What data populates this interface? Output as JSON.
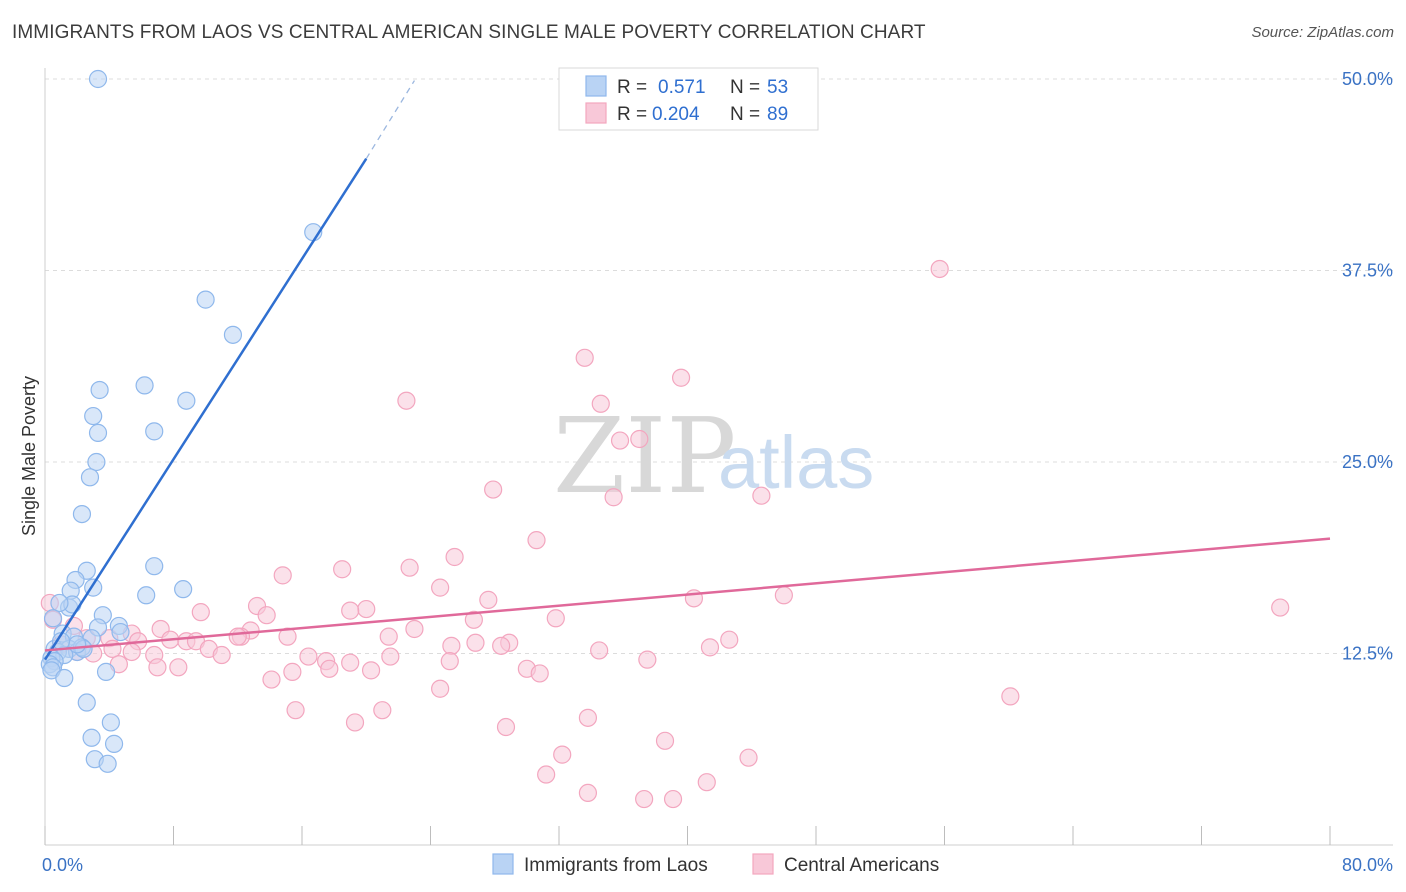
{
  "chart_data": {
    "type": "scatter",
    "title": "IMMIGRANTS FROM LAOS VS CENTRAL AMERICAN SINGLE MALE POVERTY CORRELATION CHART",
    "source": "Source: ZipAtlas.com",
    "ylabel": "Single Male Poverty",
    "xlabel": "",
    "xlim": [
      0,
      80
    ],
    "ylim": [
      0,
      50
    ],
    "x_tick_labels": [
      "0.0%",
      "80.0%"
    ],
    "y_ticks": [
      12.5,
      25.0,
      37.5,
      50.0
    ],
    "y_tick_labels": [
      "12.5%",
      "25.0%",
      "37.5%",
      "50.0%"
    ],
    "watermark": {
      "zip": "ZIP",
      "atlas": "atlas"
    },
    "legend": [
      {
        "r_label": "R =",
        "r_value": "0.571",
        "n_label": "N =",
        "n_value": "53"
      },
      {
        "r_label": "R =",
        "r_value": "0.204",
        "n_label": "N =",
        "n_value": "89"
      }
    ],
    "series": [
      {
        "name": "Immigrants from Laos",
        "color": "#8fb8ec",
        "fill": "#b9d3f4",
        "line_color": "#2f6fd0",
        "trend": {
          "x1": 0.0,
          "y1": 12.1,
          "x2": 20.0,
          "y2": 44.8,
          "dash_x2": 23.0,
          "dash_y2": 49.9
        },
        "points": [
          [
            3.3,
            50.0
          ],
          [
            16.7,
            40.0
          ],
          [
            10.0,
            35.6
          ],
          [
            11.7,
            33.3
          ],
          [
            6.2,
            30.0
          ],
          [
            3.4,
            29.7
          ],
          [
            8.8,
            29.0
          ],
          [
            3.0,
            28.0
          ],
          [
            6.8,
            27.0
          ],
          [
            3.3,
            26.9
          ],
          [
            3.2,
            25.0
          ],
          [
            2.8,
            24.0
          ],
          [
            2.3,
            21.6
          ],
          [
            6.8,
            18.2
          ],
          [
            2.6,
            17.9
          ],
          [
            3.0,
            16.8
          ],
          [
            1.9,
            17.3
          ],
          [
            1.6,
            16.6
          ],
          [
            8.6,
            16.7
          ],
          [
            6.3,
            16.3
          ],
          [
            1.5,
            15.5
          ],
          [
            1.7,
            15.7
          ],
          [
            0.9,
            15.8
          ],
          [
            0.5,
            14.8
          ],
          [
            3.6,
            15.0
          ],
          [
            4.6,
            14.3
          ],
          [
            3.3,
            14.2
          ],
          [
            4.7,
            13.9
          ],
          [
            1.1,
            13.8
          ],
          [
            1.8,
            13.6
          ],
          [
            2.9,
            13.5
          ],
          [
            0.6,
            12.8
          ],
          [
            1.5,
            12.8
          ],
          [
            2.0,
            12.6
          ],
          [
            2.3,
            12.9
          ],
          [
            2.4,
            12.8
          ],
          [
            0.8,
            12.6
          ],
          [
            1.2,
            12.4
          ],
          [
            0.4,
            12.2
          ],
          [
            0.6,
            12.0
          ],
          [
            0.3,
            11.8
          ],
          [
            0.5,
            11.6
          ],
          [
            0.4,
            11.4
          ],
          [
            1.2,
            10.9
          ],
          [
            3.8,
            11.3
          ],
          [
            2.6,
            9.3
          ],
          [
            4.1,
            8.0
          ],
          [
            2.9,
            7.0
          ],
          [
            4.3,
            6.6
          ],
          [
            3.1,
            5.6
          ],
          [
            3.9,
            5.3
          ],
          [
            2.0,
            13.1
          ],
          [
            1.0,
            13.3
          ]
        ]
      },
      {
        "name": "Central Americans",
        "color": "#f3a6bf",
        "fill": "#f8c8d8",
        "line_color": "#e0699a",
        "trend": {
          "x1": 0.0,
          "y1": 12.7,
          "x2": 80.0,
          "y2": 20.0
        },
        "points": [
          [
            55.7,
            37.6
          ],
          [
            33.6,
            31.8
          ],
          [
            39.6,
            30.5
          ],
          [
            22.5,
            29.0
          ],
          [
            34.6,
            28.8
          ],
          [
            35.8,
            26.4
          ],
          [
            37.0,
            26.5
          ],
          [
            27.9,
            23.2
          ],
          [
            35.4,
            22.7
          ],
          [
            44.6,
            22.8
          ],
          [
            30.6,
            19.9
          ],
          [
            25.5,
            18.8
          ],
          [
            14.8,
            17.6
          ],
          [
            18.5,
            18.0
          ],
          [
            22.7,
            18.1
          ],
          [
            24.6,
            16.8
          ],
          [
            27.6,
            16.0
          ],
          [
            40.4,
            16.1
          ],
          [
            46.0,
            16.3
          ],
          [
            76.9,
            15.5
          ],
          [
            13.2,
            15.6
          ],
          [
            20.0,
            15.4
          ],
          [
            19.0,
            15.3
          ],
          [
            9.7,
            15.2
          ],
          [
            13.8,
            15.0
          ],
          [
            26.7,
            14.7
          ],
          [
            31.8,
            14.8
          ],
          [
            12.8,
            14.0
          ],
          [
            7.2,
            14.1
          ],
          [
            21.4,
            13.6
          ],
          [
            23.0,
            14.1
          ],
          [
            5.4,
            13.8
          ],
          [
            12.2,
            13.6
          ],
          [
            0.3,
            15.8
          ],
          [
            0.5,
            14.7
          ],
          [
            1.8,
            14.3
          ],
          [
            2.6,
            13.5
          ],
          [
            4.0,
            13.5
          ],
          [
            5.8,
            13.3
          ],
          [
            7.8,
            13.4
          ],
          [
            8.8,
            13.3
          ],
          [
            9.4,
            13.3
          ],
          [
            12.0,
            13.6
          ],
          [
            15.1,
            13.6
          ],
          [
            28.9,
            13.2
          ],
          [
            34.5,
            12.7
          ],
          [
            41.4,
            12.9
          ],
          [
            42.6,
            13.4
          ],
          [
            25.3,
            13.0
          ],
          [
            1.0,
            13.1
          ],
          [
            2.0,
            12.6
          ],
          [
            3.0,
            12.5
          ],
          [
            4.2,
            12.8
          ],
          [
            5.4,
            12.6
          ],
          [
            6.8,
            12.4
          ],
          [
            10.2,
            12.8
          ],
          [
            11.0,
            12.4
          ],
          [
            16.4,
            12.3
          ],
          [
            17.5,
            12.0
          ],
          [
            17.7,
            11.5
          ],
          [
            19.0,
            11.9
          ],
          [
            21.5,
            12.3
          ],
          [
            25.2,
            12.0
          ],
          [
            26.8,
            13.2
          ],
          [
            28.4,
            13.0
          ],
          [
            30.0,
            11.5
          ],
          [
            30.8,
            11.2
          ],
          [
            37.5,
            12.1
          ],
          [
            15.4,
            11.3
          ],
          [
            14.1,
            10.8
          ],
          [
            7.0,
            11.6
          ],
          [
            8.3,
            11.6
          ],
          [
            4.6,
            11.8
          ],
          [
            20.3,
            11.4
          ],
          [
            24.6,
            10.2
          ],
          [
            60.1,
            9.7
          ],
          [
            15.6,
            8.8
          ],
          [
            19.3,
            8.0
          ],
          [
            21.0,
            8.8
          ],
          [
            28.7,
            7.7
          ],
          [
            33.8,
            8.3
          ],
          [
            38.6,
            6.8
          ],
          [
            32.2,
            5.9
          ],
          [
            43.8,
            5.7
          ],
          [
            31.2,
            4.6
          ],
          [
            41.2,
            4.1
          ],
          [
            33.8,
            3.4
          ],
          [
            37.3,
            3.0
          ],
          [
            39.1,
            3.0
          ]
        ]
      }
    ]
  }
}
